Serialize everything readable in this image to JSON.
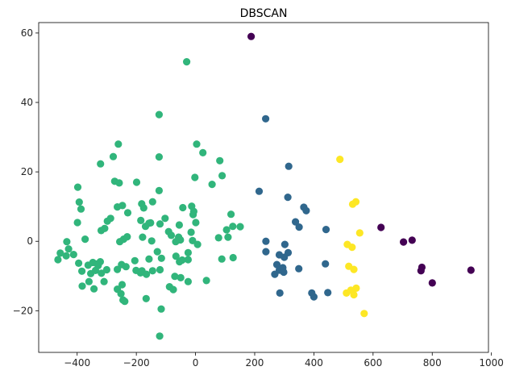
{
  "chart_data": {
    "type": "scatter",
    "title": "DBSCAN",
    "xlabel": "",
    "ylabel": "",
    "xlim": [
      -530,
      990
    ],
    "ylim": [
      -32,
      63
    ],
    "xticks": [
      -400,
      -200,
      0,
      200,
      400,
      600,
      800,
      1000
    ],
    "yticks": [
      -20,
      0,
      20,
      40,
      60
    ],
    "grid": false,
    "series": [
      {
        "cluster": -1,
        "color": "#440154",
        "points": [
          [
            188,
            59
          ],
          [
            627,
            4
          ],
          [
            703,
            -0.2
          ],
          [
            732,
            0.3
          ],
          [
            765,
            -7.5
          ],
          [
            762,
            -8.5
          ],
          [
            800,
            -12
          ],
          [
            931,
            -8.3
          ]
        ]
      },
      {
        "cluster": 0,
        "color": "#31b57b",
        "points": [
          [
            -30,
            51.7
          ],
          [
            -123,
            36.5
          ],
          [
            4,
            28
          ],
          [
            -123,
            24.3
          ],
          [
            -261,
            28
          ],
          [
            -278,
            24.4
          ],
          [
            -321,
            22.3
          ],
          [
            25,
            25.5
          ],
          [
            82,
            23.2
          ],
          [
            -273,
            17.3
          ],
          [
            -258,
            16.8
          ],
          [
            -199,
            17
          ],
          [
            -2,
            18.4
          ],
          [
            90,
            18.9
          ],
          [
            56,
            16.4
          ],
          [
            -398,
            15.6
          ],
          [
            -123,
            14.6
          ],
          [
            -393,
            11.3
          ],
          [
            -182,
            10.8
          ],
          [
            -175,
            9.6
          ],
          [
            -145,
            11.4
          ],
          [
            -387,
            9.3
          ],
          [
            -264,
            9.9
          ],
          [
            -43,
            9.7
          ],
          [
            -13,
            10.1
          ],
          [
            -247,
            10.3
          ],
          [
            -103,
            6.6
          ],
          [
            -185,
            6
          ],
          [
            -229,
            8.2
          ],
          [
            -298,
            5.8
          ],
          [
            -287,
            6.6
          ],
          [
            -157,
            5.2
          ],
          [
            -152,
            5.3
          ],
          [
            -6,
            8.6
          ],
          [
            -8,
            7.7
          ],
          [
            1,
            5.4
          ],
          [
            105,
            3.3
          ],
          [
            151,
            4.2
          ],
          [
            -399,
            5.4
          ],
          [
            -307,
            3.7
          ],
          [
            -319,
            3.1
          ],
          [
            -169,
            4.3
          ],
          [
            -55,
            4.7
          ],
          [
            -120,
            5
          ],
          [
            -91,
            2.8
          ],
          [
            -15,
            2.6
          ],
          [
            120,
            7.8
          ],
          [
            126,
            4.3
          ],
          [
            -435,
            -0.1
          ],
          [
            -429,
            -2.2
          ],
          [
            -373,
            0.6
          ],
          [
            -243,
            0.6
          ],
          [
            -256,
            -0.1
          ],
          [
            -231,
            1.3
          ],
          [
            -179,
            1.2
          ],
          [
            -148,
            0.1
          ],
          [
            -82,
            1.7
          ],
          [
            -67,
            -0.1
          ],
          [
            -57,
            1.2
          ],
          [
            -51,
            0.4
          ],
          [
            -10,
            0.2
          ],
          [
            7,
            -0.9
          ],
          [
            78,
            1
          ],
          [
            110,
            1.2
          ],
          [
            -457,
            -3.4
          ],
          [
            -437,
            -4.2
          ],
          [
            -412,
            -3.8
          ],
          [
            -465,
            -5.3
          ],
          [
            -395,
            -6.3
          ],
          [
            -363,
            -6.9
          ],
          [
            -347,
            -6.1
          ],
          [
            -329,
            -7
          ],
          [
            -322,
            -5.9
          ],
          [
            -332,
            -6.5
          ],
          [
            -384,
            -8.6
          ],
          [
            -354,
            -9.3
          ],
          [
            -338,
            -8.4
          ],
          [
            -318,
            -9.2
          ],
          [
            -300,
            -8.2
          ],
          [
            -264,
            -8.1
          ],
          [
            -250,
            -6.7
          ],
          [
            -205,
            -5.6
          ],
          [
            -157,
            -5.1
          ],
          [
            -129,
            -3
          ],
          [
            -115,
            -4.9
          ],
          [
            -66,
            -4.3
          ],
          [
            -54,
            -5.9
          ],
          [
            -45,
            -5.4
          ],
          [
            -25,
            -3.3
          ],
          [
            -25,
            -5.3
          ],
          [
            89,
            -5.1
          ],
          [
            127,
            -4.7
          ],
          [
            -383,
            -12.9
          ],
          [
            -360,
            -11.6
          ],
          [
            -343,
            -13.7
          ],
          [
            -309,
            -11.6
          ],
          [
            -264,
            -13.8
          ],
          [
            -248,
            -12.5
          ],
          [
            -235,
            -7.3
          ],
          [
            -201,
            -8.4
          ],
          [
            -186,
            -9.1
          ],
          [
            -181,
            -8.5
          ],
          [
            -166,
            -9.5
          ],
          [
            -145,
            -8.5
          ],
          [
            -120,
            -8.2
          ],
          [
            -88,
            -13.1
          ],
          [
            -75,
            -13.9
          ],
          [
            -50,
            -10.5
          ],
          [
            -70,
            -10.1
          ],
          [
            -25,
            -11.6
          ],
          [
            37,
            -11.3
          ],
          [
            -252,
            -15.1
          ],
          [
            -245,
            -16.9
          ],
          [
            -239,
            -17.3
          ],
          [
            -167,
            -16.5
          ],
          [
            -116,
            -19.5
          ],
          [
            -121,
            -27.3
          ]
        ]
      },
      {
        "cluster": 1,
        "color": "#30678d",
        "points": [
          [
            237,
            35.3
          ],
          [
            315,
            21.6
          ],
          [
            215,
            14.4
          ],
          [
            312,
            12.7
          ],
          [
            366,
            9.8
          ],
          [
            374,
            8.8
          ],
          [
            338,
            5.6
          ],
          [
            350,
            4.1
          ],
          [
            441,
            3.4
          ],
          [
            238,
            0
          ],
          [
            302,
            -0.9
          ],
          [
            238,
            -3
          ],
          [
            283,
            -3.9
          ],
          [
            300,
            -4.6
          ],
          [
            313,
            -3.3
          ],
          [
            275,
            -6.7
          ],
          [
            295,
            -7.6
          ],
          [
            349,
            -7.9
          ],
          [
            439,
            -6.5
          ],
          [
            268,
            -9.5
          ],
          [
            283,
            -8.3
          ],
          [
            298,
            -8.9
          ],
          [
            285,
            -14.9
          ],
          [
            393,
            -14.9
          ],
          [
            400,
            -16
          ],
          [
            447,
            -14.8
          ]
        ]
      },
      {
        "cluster": 2,
        "color": "#fde725",
        "points": [
          [
            488,
            23.6
          ],
          [
            542,
            11.4
          ],
          [
            531,
            10.7
          ],
          [
            555,
            2.4
          ],
          [
            513,
            -0.9
          ],
          [
            529,
            -1.7
          ],
          [
            518,
            -7.2
          ],
          [
            535,
            -8.1
          ],
          [
            543,
            -13.5
          ],
          [
            510,
            -14.9
          ],
          [
            525,
            -14.1
          ],
          [
            535,
            -15.4
          ],
          [
            570,
            -20.8
          ]
        ]
      }
    ]
  }
}
